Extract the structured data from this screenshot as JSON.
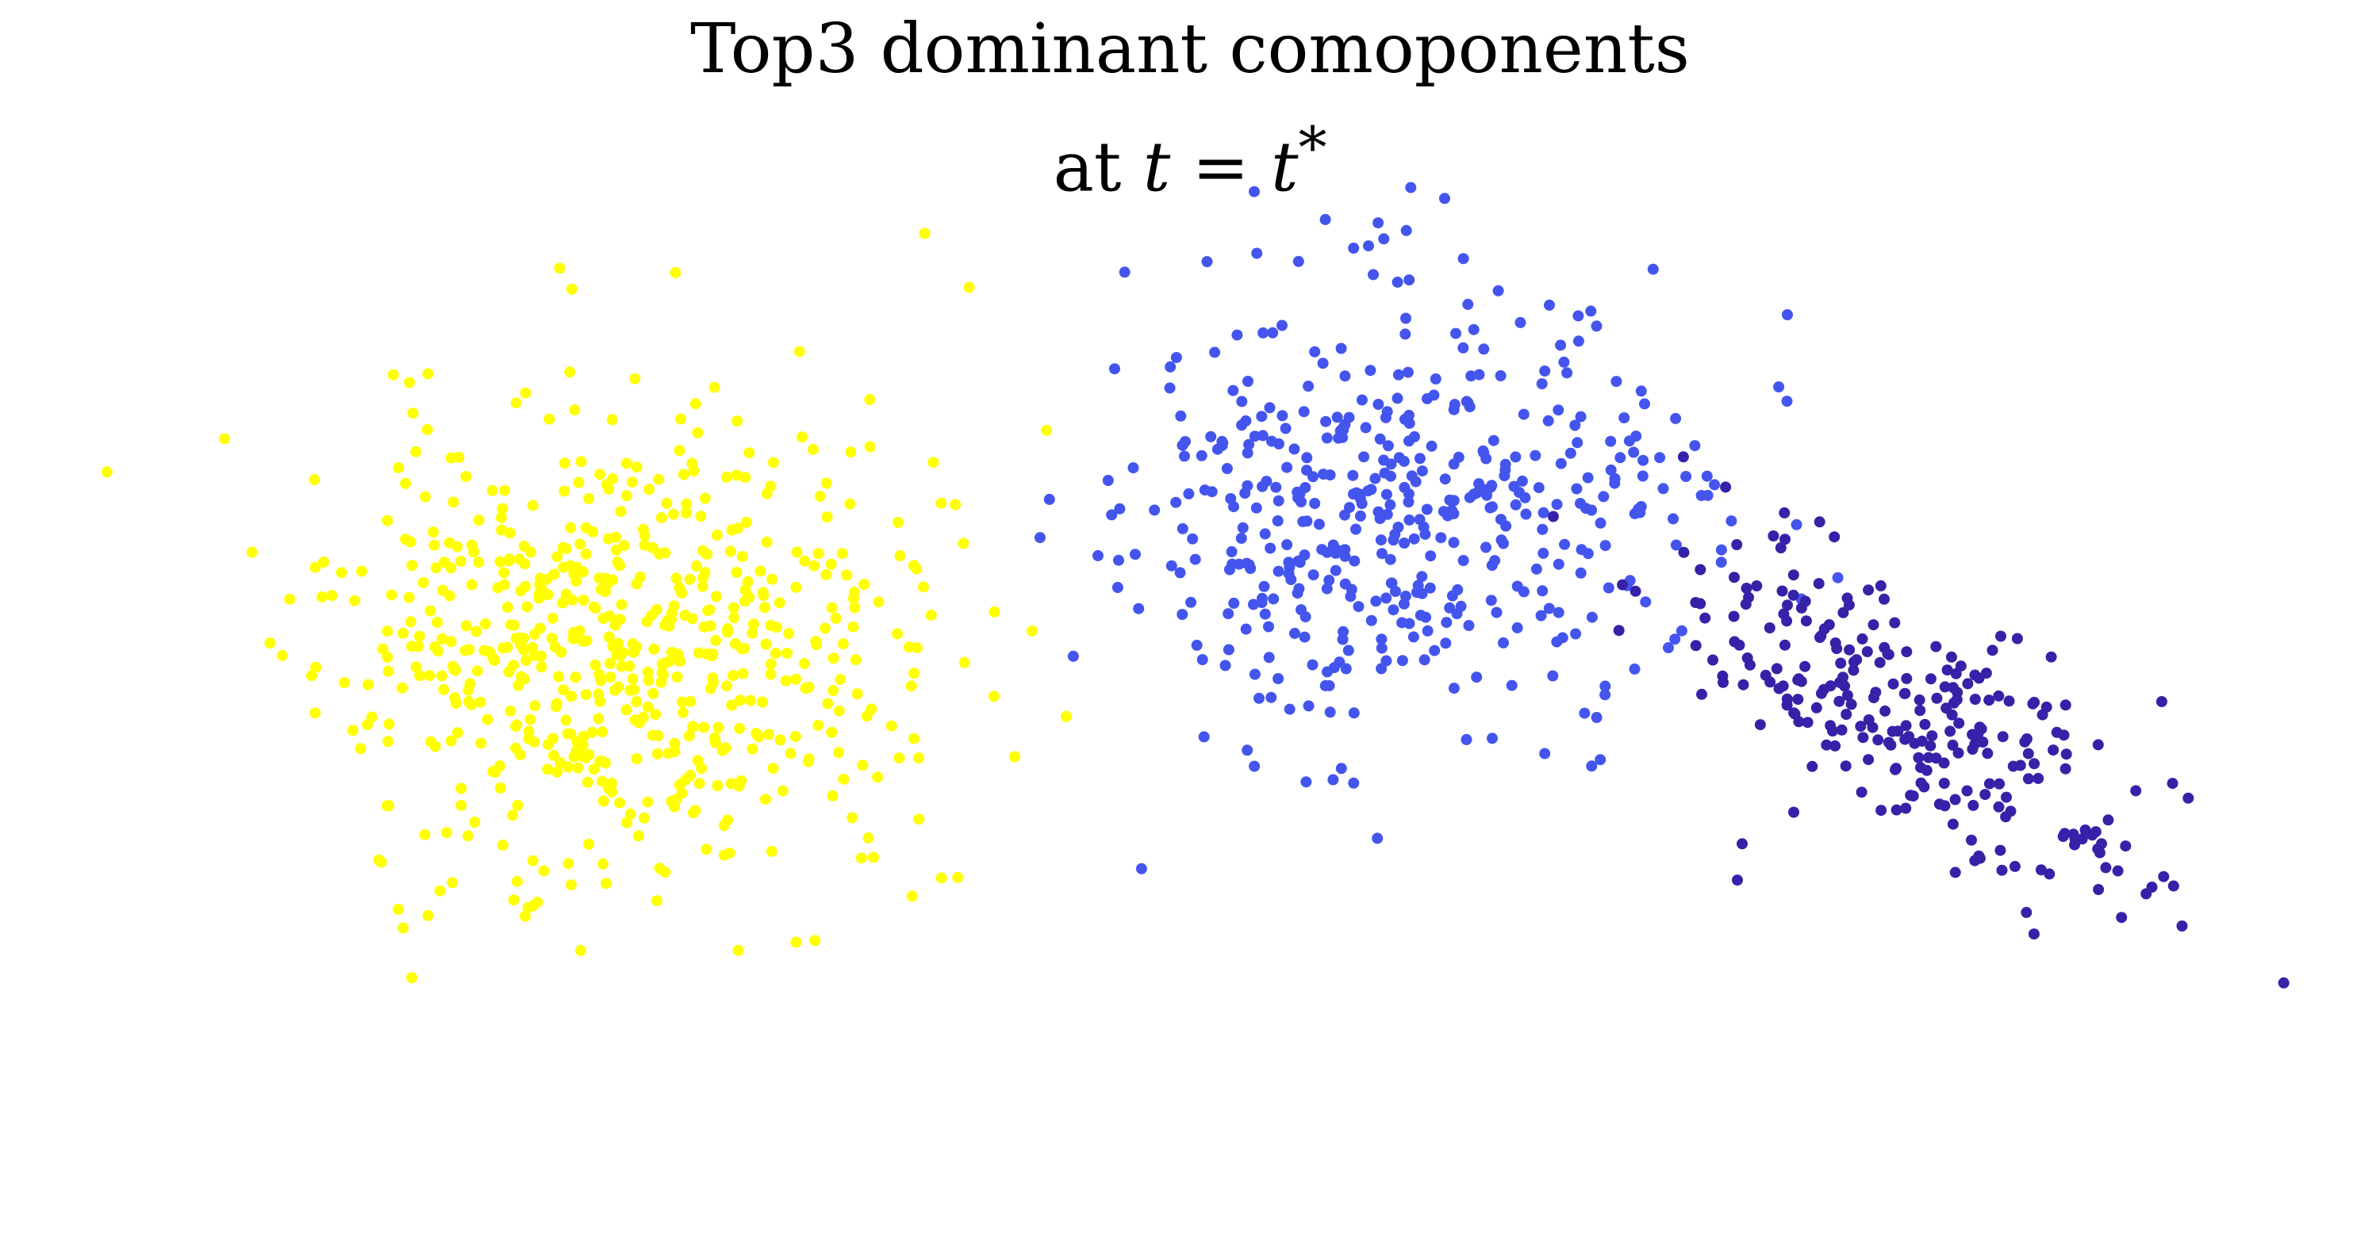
{
  "chart_data": {
    "type": "scatter",
    "title_line1": "Top3 dominant comoponents",
    "title_line2_prefix": "at ",
    "title_line2_var": "t",
    "title_line2_eq": " = ",
    "title_line2_rhs": "t",
    "title_line2_sup": "*",
    "axes_visible": false,
    "grid": false,
    "xlim": [
      0,
      10
    ],
    "ylim": [
      0,
      5
    ],
    "series": [
      {
        "color": "#ffff00",
        "n": 620,
        "seed": 11,
        "center": [
          2.6,
          2.7
        ],
        "spread": [
          0.62,
          0.52
        ],
        "rotation_deg": 0,
        "outliers": [
          [
            1.36,
            3.05
          ],
          [
            1.72,
            3.84
          ],
          [
            4.48,
            2.37
          ],
          [
            3.67,
            1.75
          ],
          [
            2.44,
            1.34
          ],
          [
            3.84,
            2.56
          ]
        ]
      },
      {
        "color": "#4455ee",
        "n": 470,
        "seed": 29,
        "center": [
          5.9,
          3.3
        ],
        "spread": [
          0.62,
          0.48
        ],
        "rotation_deg": 0,
        "outliers": [
          [
            5.27,
            4.68
          ],
          [
            6.07,
            4.65
          ],
          [
            5.29,
            2.45
          ],
          [
            7.03,
            3.24
          ],
          [
            4.98,
            3.58
          ]
        ]
      },
      {
        "color": "#3622a8",
        "n": 260,
        "seed": 47,
        "center": [
          8.05,
          2.32
        ],
        "spread": [
          0.6,
          0.23
        ],
        "rotation_deg": -35,
        "outliers": [
          [
            7.51,
            2.86
          ],
          [
            8.83,
            1.81
          ],
          [
            7.3,
            1.65
          ],
          [
            7.32,
            1.81
          ],
          [
            7.24,
            2.52
          ],
          [
            7.5,
            3.15
          ]
        ]
      }
    ]
  }
}
